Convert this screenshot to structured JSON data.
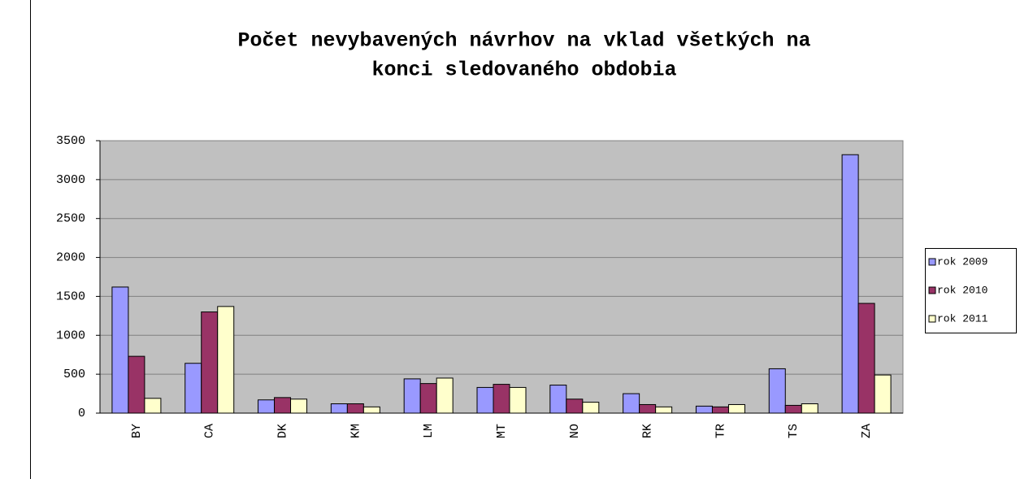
{
  "chart_data": {
    "type": "bar",
    "title": [
      "Počet nevybavených návrhov na vklad všetkých na",
      "konci sledovaného obdobia"
    ],
    "categories": [
      "BY",
      "CA",
      "DK",
      "KM",
      "LM",
      "MT",
      "NO",
      "RK",
      "TR",
      "TS",
      "ZA"
    ],
    "series": [
      {
        "name": "rok 2009",
        "color": "#9999ff",
        "values": [
          1620,
          640,
          170,
          120,
          440,
          330,
          360,
          250,
          90,
          570,
          3320
        ]
      },
      {
        "name": "rok 2010",
        "color": "#993366",
        "values": [
          730,
          1300,
          200,
          120,
          380,
          370,
          180,
          110,
          80,
          100,
          1410
        ]
      },
      {
        "name": "rok 2011",
        "color": "#ffffcc",
        "values": [
          190,
          1370,
          180,
          80,
          450,
          330,
          140,
          80,
          110,
          120,
          490
        ]
      }
    ],
    "ylim": [
      0,
      3500
    ],
    "yticks": [
      0,
      500,
      1000,
      1500,
      2000,
      2500,
      3000,
      3500
    ],
    "grid": true,
    "legend": "right"
  }
}
